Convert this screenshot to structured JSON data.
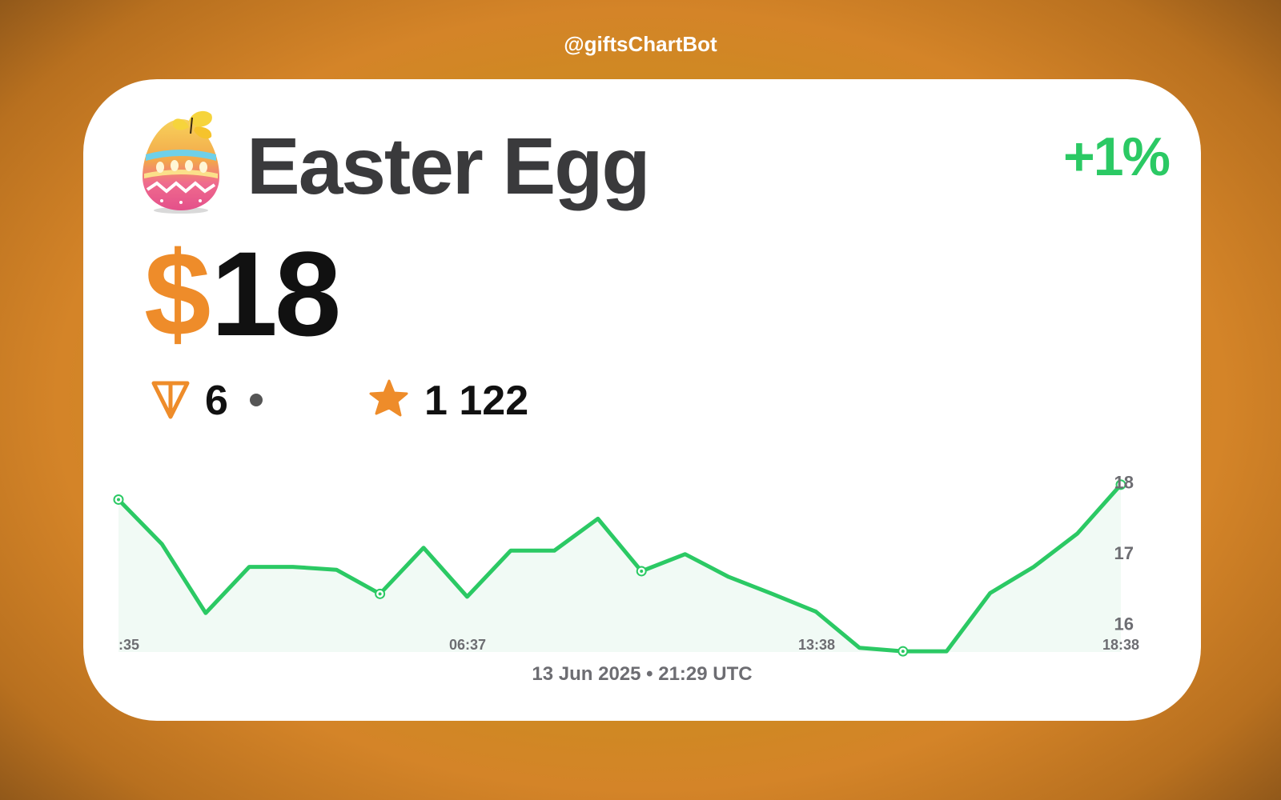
{
  "header": {
    "handle": "@giftsChartBot"
  },
  "card": {
    "title": "Easter Egg",
    "change": "+1%",
    "price_currency_symbol": "$",
    "price_value": "18",
    "ton_value": "6",
    "stars_value": "1 122",
    "date": "13 Jun 2025 • 21:29 UTC",
    "icons": [
      "easter-egg-icon",
      "ton-icon",
      "star-icon"
    ]
  },
  "colors": {
    "accent_orange": "#ee8c2a",
    "line_green": "#2bc964",
    "area_fill": "#f1faf5",
    "text_dark": "#3a3a3c",
    "axis_gray": "#6d6d72"
  },
  "chart_data": {
    "type": "area",
    "x_tick_labels": [
      ":35",
      "06:37",
      "13:38",
      "18:38"
    ],
    "y_tick_labels": [
      "18",
      "17",
      "16"
    ],
    "y_ticks": [
      18,
      17,
      16
    ],
    "ylim": [
      15.6,
      18.15
    ],
    "values": [
      17.75,
      17.12,
      16.15,
      16.8,
      16.8,
      16.76,
      16.42,
      17.07,
      16.38,
      17.03,
      17.03,
      17.48,
      16.74,
      16.98,
      16.66,
      16.42,
      16.17,
      15.66,
      15.61,
      15.61,
      16.43,
      16.8,
      17.27,
      17.96
    ],
    "markers": [
      0,
      6,
      12,
      18
    ],
    "grid": false,
    "legend": "none"
  }
}
